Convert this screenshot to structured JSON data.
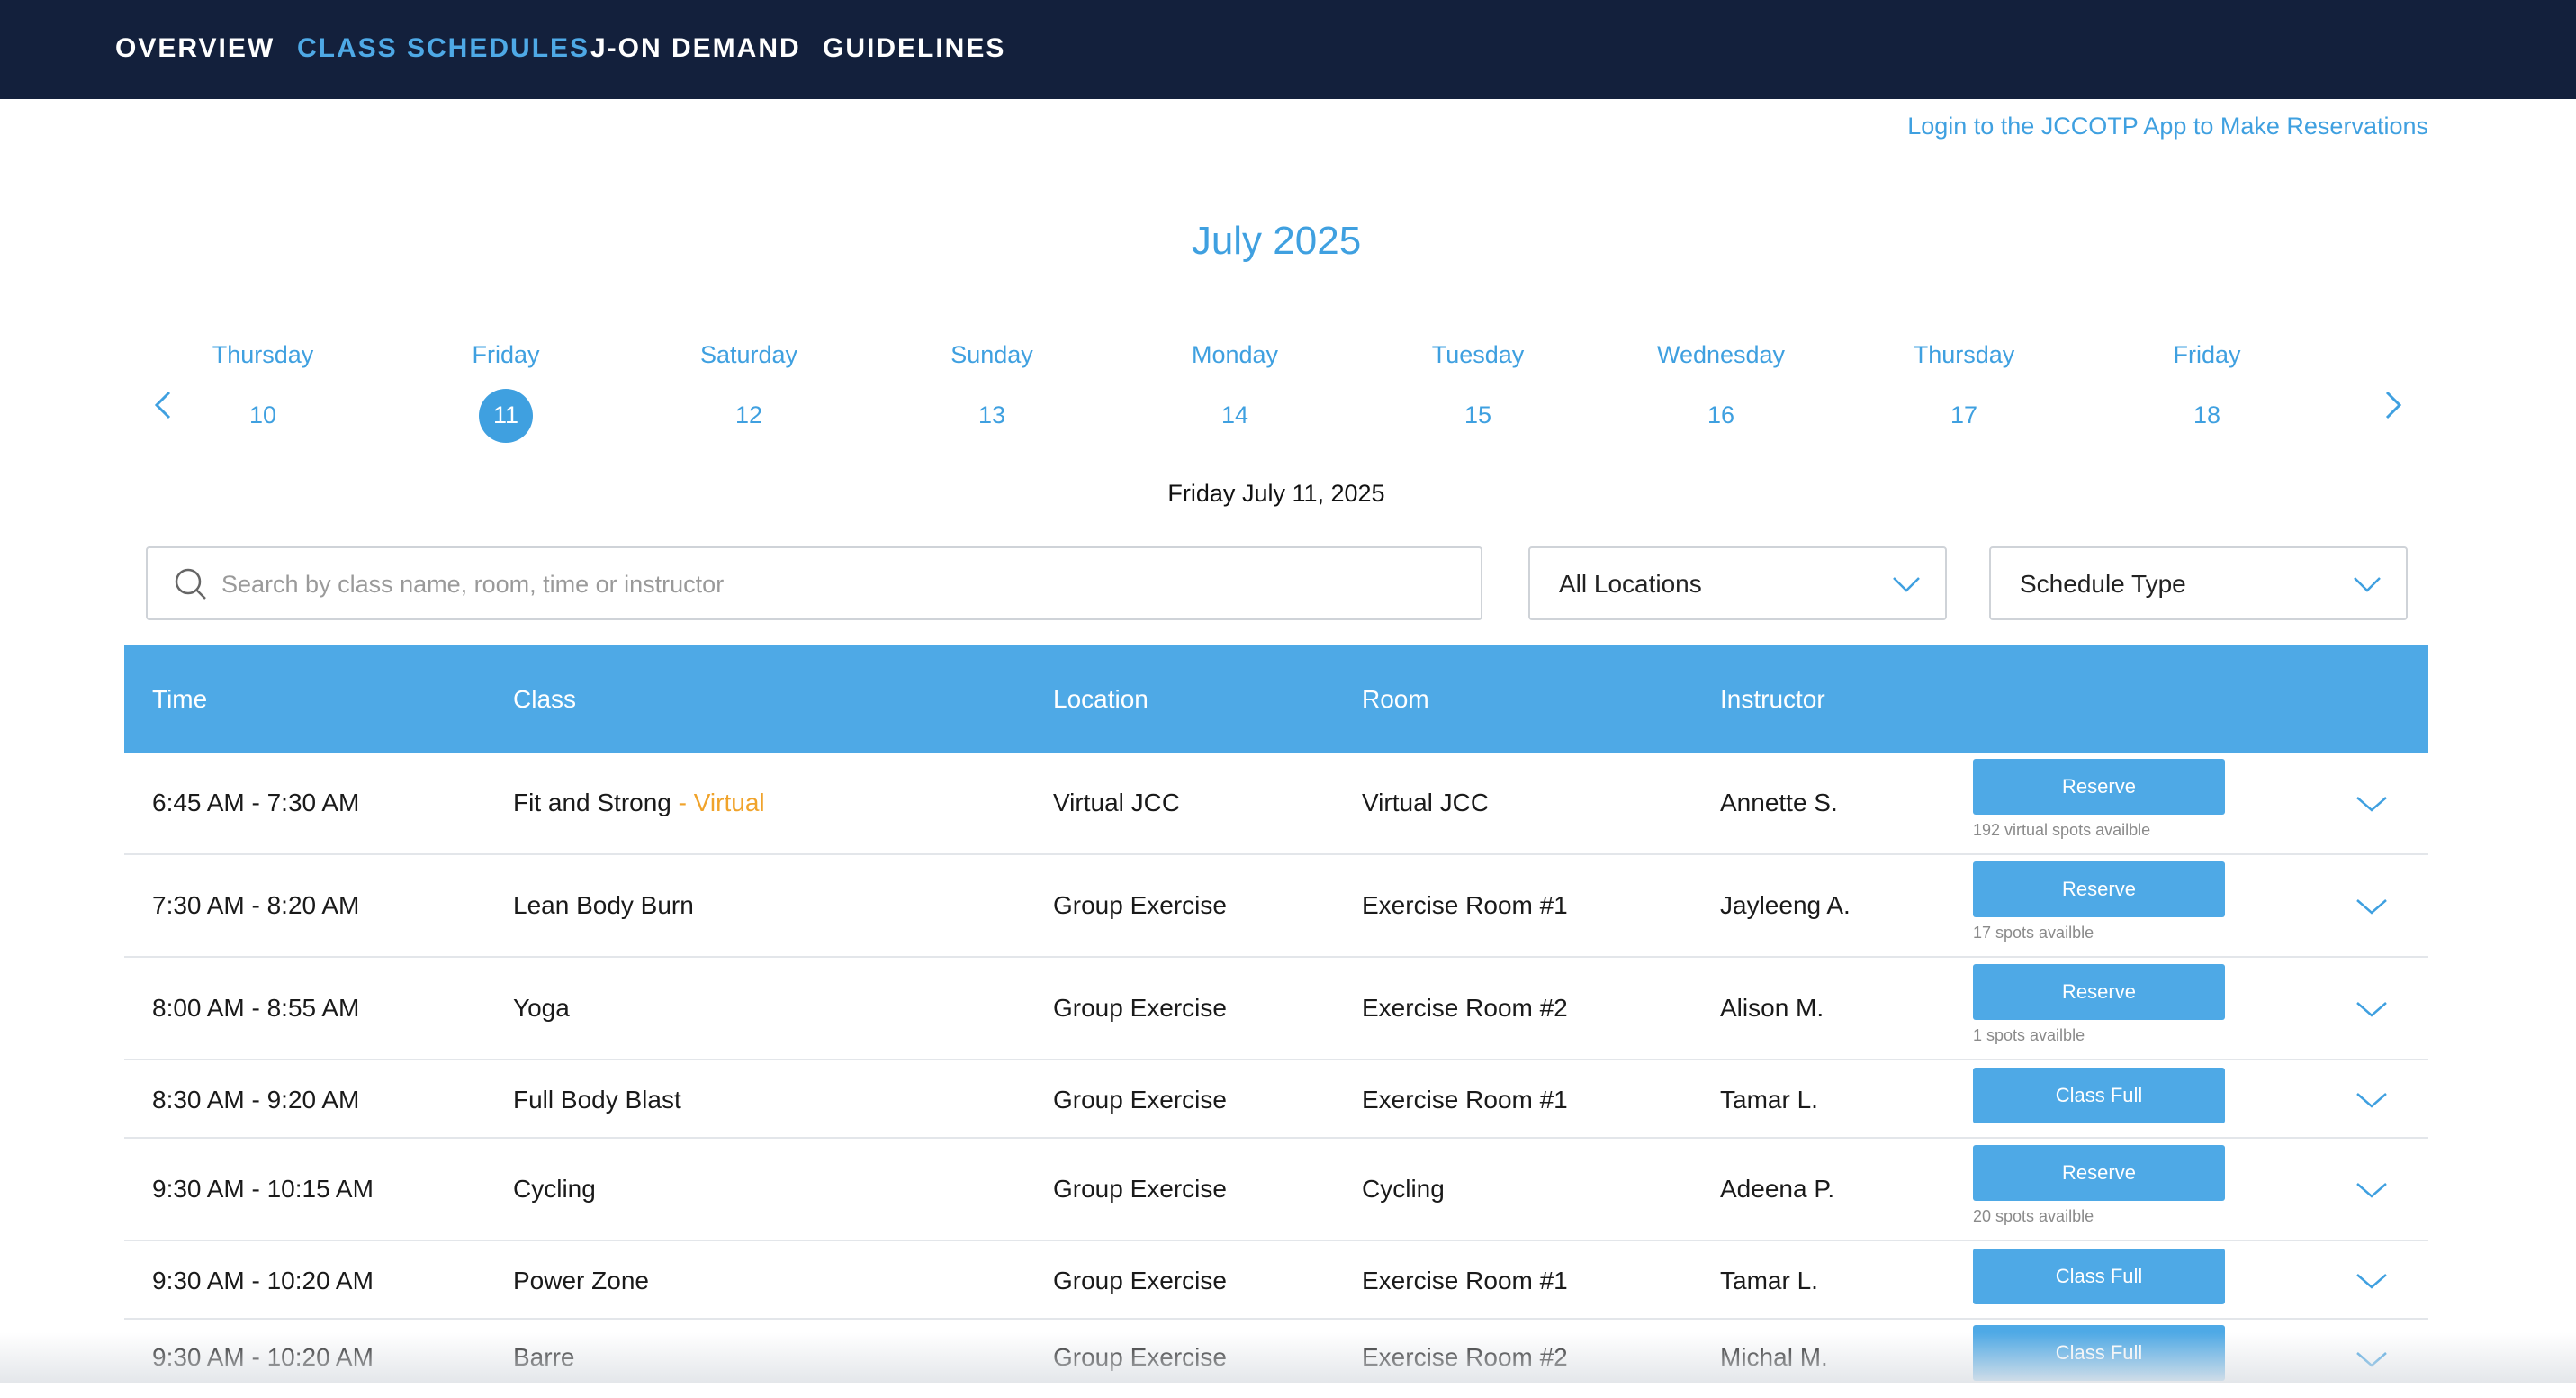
{
  "nav": {
    "items": [
      {
        "label": "OVERVIEW",
        "active": false
      },
      {
        "label": "CLASS SCHEDULES",
        "active": true
      },
      {
        "label": "J-ON DEMAND",
        "active": false
      },
      {
        "label": "GUIDELINES",
        "active": false
      }
    ]
  },
  "login_link": "Login to the JCCOTP App to Make Reservations",
  "calendar": {
    "month": "July 2025",
    "prev_icon": "chevron-left-icon",
    "next_icon": "chevron-right-icon",
    "days": [
      {
        "name": "Thursday",
        "num": "10"
      },
      {
        "name": "Friday",
        "num": "11",
        "selected": true
      },
      {
        "name": "Saturday",
        "num": "12"
      },
      {
        "name": "Sunday",
        "num": "13"
      },
      {
        "name": "Monday",
        "num": "14"
      },
      {
        "name": "Tuesday",
        "num": "15"
      },
      {
        "name": "Wednesday",
        "num": "16"
      },
      {
        "name": "Thursday",
        "num": "17"
      },
      {
        "name": "Friday",
        "num": "18"
      }
    ],
    "selected_date": "Friday July 11, 2025"
  },
  "filters": {
    "search_placeholder": "Search by class name, room, time or instructor",
    "search_value": "",
    "location_label": "All Locations",
    "schedule_type_label": "Schedule Type"
  },
  "table": {
    "headers": {
      "time": "Time",
      "class": "Class",
      "location": "Location",
      "room": "Room",
      "instructor": "Instructor"
    },
    "rows": [
      {
        "time": "6:45 AM - 7:30 AM",
        "class": "Fit and Strong",
        "tag": " - Virtual",
        "location": "Virtual JCC",
        "room": "Virtual JCC",
        "instructor": "Annette S.",
        "button": "Reserve",
        "spots": "192 virtual spots availble"
      },
      {
        "time": "7:30 AM - 8:20 AM",
        "class": "Lean Body Burn",
        "tag": "",
        "location": "Group Exercise",
        "room": "Exercise Room #1",
        "instructor": "Jayleeng A.",
        "button": "Reserve",
        "spots": "17 spots availble"
      },
      {
        "time": "8:00 AM - 8:55 AM",
        "class": "Yoga",
        "tag": "",
        "location": "Group Exercise",
        "room": "Exercise Room #2",
        "instructor": "Alison M.",
        "button": "Reserve",
        "spots": "1 spots availble"
      },
      {
        "time": "8:30 AM - 9:20 AM",
        "class": "Full Body Blast",
        "tag": "",
        "location": "Group Exercise",
        "room": "Exercise Room #1",
        "instructor": "Tamar L.",
        "button": "Class Full",
        "spots": ""
      },
      {
        "time": "9:30 AM - 10:15 AM",
        "class": "Cycling",
        "tag": "",
        "location": "Group Exercise",
        "room": "Cycling",
        "instructor": "Adeena P.",
        "button": "Reserve",
        "spots": "20 spots availble"
      },
      {
        "time": "9:30 AM - 10:20 AM",
        "class": "Power Zone",
        "tag": "",
        "location": "Group Exercise",
        "room": "Exercise Room #1",
        "instructor": "Tamar L.",
        "button": "Class Full",
        "spots": ""
      },
      {
        "time": "9:30 AM - 10:20 AM",
        "class": "Barre",
        "tag": "",
        "location": "Group Exercise",
        "room": "Exercise Room #2",
        "instructor": "Michal M.",
        "button": "Class Full",
        "spots": ""
      }
    ]
  },
  "colors": {
    "nav_bg": "#13203c",
    "accent": "#4ea9e6",
    "link": "#3fa0e0",
    "virtual_tag": "#f0a32b"
  }
}
